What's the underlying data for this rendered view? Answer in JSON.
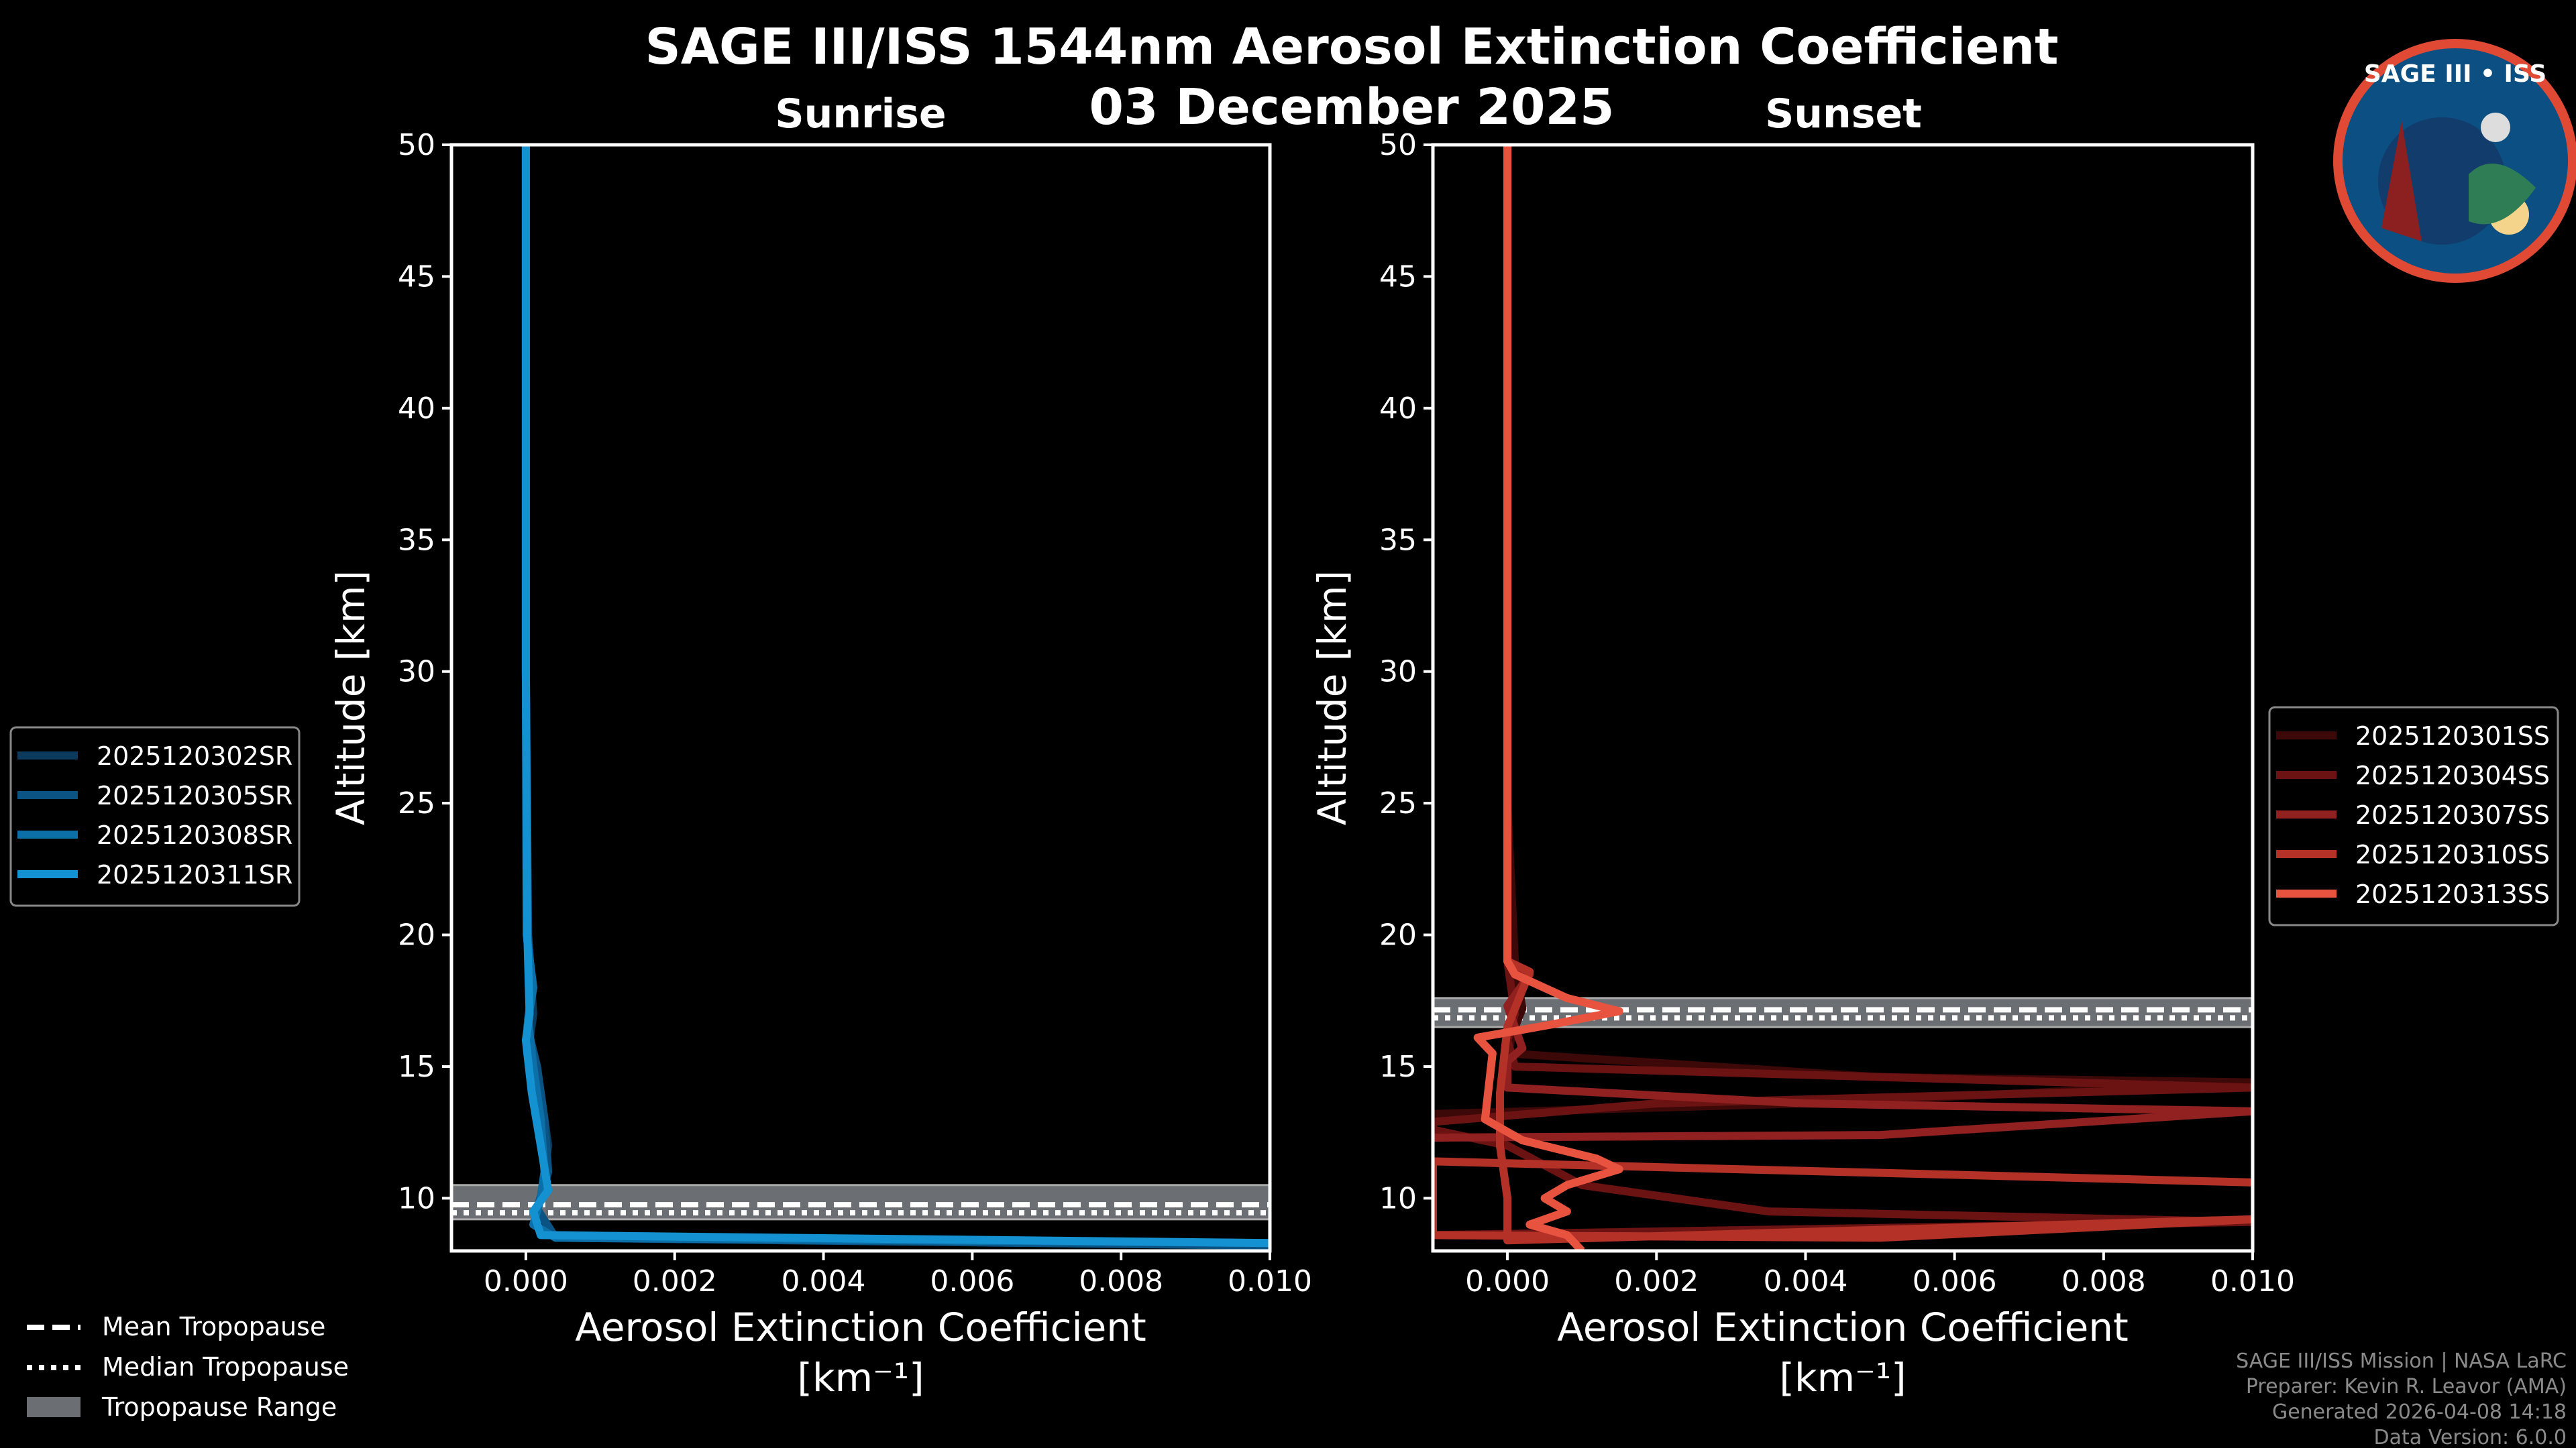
{
  "title_line1": "SAGE III/ISS 1544nm Aerosol Extinction Coefficient",
  "title_line2": "03 December 2025",
  "logo_text": "SAGE III • ISS",
  "credits": [
    "SAGE III/ISS Mission | NASA LaRC",
    "Preparer: Kevin R. Leavor (AMA)",
    "Generated 2026-04-08 14:18",
    "Data Version: 6.0.0"
  ],
  "tropo_legend": {
    "mean": "Mean Tropopause",
    "median": "Median Tropopause",
    "range": "Tropopause Range"
  },
  "colors": {
    "tropo_range": "#6b6e72"
  },
  "chart_data": [
    {
      "type": "line",
      "title": "Sunrise",
      "xlabel": "Aerosol Extinction Coefficient",
      "xunit": "[km⁻¹]",
      "ylabel": "Altitude [km]",
      "xlim": [
        -0.001,
        0.01
      ],
      "ylim": [
        8,
        50
      ],
      "xticks": [
        "0.000",
        "0.002",
        "0.004",
        "0.006",
        "0.008",
        "0.010"
      ],
      "xtick_values": [
        0,
        0.002,
        0.004,
        0.006,
        0.008,
        0.01
      ],
      "yticks": [
        10,
        15,
        20,
        25,
        30,
        35,
        40,
        45,
        50
      ],
      "legend_placement": "left",
      "tropopause": {
        "mean": 9.6,
        "median": 9.6,
        "range": [
          9.2,
          10.5
        ]
      },
      "series": [
        {
          "name": "2025120302SR",
          "color": "#0b3a5c",
          "points": [
            [
              0,
              50
            ],
            [
              0,
              30
            ],
            [
              2e-05,
              20
            ],
            [
              0.0001,
              17
            ],
            [
              5e-05,
              16
            ],
            [
              0.0002,
              14
            ],
            [
              0.0003,
              12
            ],
            [
              0.0002,
              10
            ],
            [
              0.0001,
              9
            ],
            [
              0.0004,
              8.6
            ],
            [
              0.01,
              8.2
            ]
          ]
        },
        {
          "name": "2025120305SR",
          "color": "#0a5383",
          "points": [
            [
              0,
              50
            ],
            [
              0,
              30
            ],
            [
              3e-05,
              20
            ],
            [
              8e-05,
              18
            ],
            [
              2e-05,
              16.5
            ],
            [
              0.00015,
              15
            ],
            [
              0.00025,
              13
            ],
            [
              0.0003,
              11
            ],
            [
              0.00015,
              9.6
            ],
            [
              0.0004,
              8.5
            ],
            [
              0.01,
              8.2
            ]
          ]
        },
        {
          "name": "2025120308SR",
          "color": "#0c6fa8",
          "points": [
            [
              0,
              50
            ],
            [
              0,
              30
            ],
            [
              1e-05,
              20
            ],
            [
              0.0001,
              18
            ],
            [
              3e-05,
              16.8
            ],
            [
              0.0001,
              15
            ],
            [
              0.0002,
              13
            ],
            [
              0.00025,
              11
            ],
            [
              0.0002,
              10
            ],
            [
              0.0001,
              9
            ],
            [
              0.0004,
              8.5
            ],
            [
              0.01,
              8.3
            ]
          ]
        },
        {
          "name": "2025120311SR",
          "color": "#1491d1",
          "points": [
            [
              0,
              50
            ],
            [
              0,
              30
            ],
            [
              2e-05,
              20
            ],
            [
              5e-05,
              17
            ],
            [
              0,
              16
            ],
            [
              8e-05,
              14
            ],
            [
              0.0002,
              12
            ],
            [
              0.0003,
              10.3
            ],
            [
              0.0001,
              9.5
            ],
            [
              0.0002,
              8.6
            ],
            [
              0.01,
              8.3
            ]
          ]
        }
      ]
    },
    {
      "type": "line",
      "title": "Sunset",
      "xlabel": "Aerosol Extinction Coefficient",
      "xunit": "[km⁻¹]",
      "ylabel": "Altitude [km]",
      "xlim": [
        -0.001,
        0.01
      ],
      "ylim": [
        8,
        50
      ],
      "xticks": [
        "0.000",
        "0.002",
        "0.004",
        "0.006",
        "0.008",
        "0.010"
      ],
      "xtick_values": [
        0,
        0.002,
        0.004,
        0.006,
        0.008,
        0.01
      ],
      "yticks": [
        10,
        15,
        20,
        25,
        30,
        35,
        40,
        45,
        50
      ],
      "legend_placement": "right",
      "tropopause": {
        "mean": 17.0,
        "median": 17.0,
        "range": [
          16.5,
          17.6
        ]
      },
      "series": [
        {
          "name": "2025120301SS",
          "color": "#3d0808",
          "points": [
            [
              0,
              50
            ],
            [
              0,
              25
            ],
            [
              0.0001,
              19
            ],
            [
              0.0002,
              17.2
            ],
            [
              0.0001,
              16.5
            ],
            [
              0,
              15.5
            ],
            [
              0.005,
              14.6
            ],
            [
              0.01,
              14.4
            ],
            [
              0.004,
              13.6
            ],
            [
              -0.001,
              13.2
            ]
          ]
        },
        {
          "name": "2025120304SS",
          "color": "#6b1212",
          "points": [
            [
              0,
              50
            ],
            [
              0,
              25
            ],
            [
              0,
              19
            ],
            [
              0.0001,
              17
            ],
            [
              0,
              16
            ],
            [
              0.0001,
              15
            ],
            [
              0.01,
              14.2
            ],
            [
              0.002,
              13.6
            ],
            [
              -0.001,
              12.9
            ],
            [
              -0.001,
              12.6
            ],
            [
              0,
              12
            ],
            [
              0.001,
              10.5
            ],
            [
              0.0035,
              9.5
            ],
            [
              0.01,
              9.1
            ],
            [
              -0.001,
              8.6
            ]
          ]
        },
        {
          "name": "2025120307SS",
          "color": "#912020",
          "points": [
            [
              0,
              50
            ],
            [
              0,
              25
            ],
            [
              0,
              19
            ],
            [
              0.0003,
              18.5
            ],
            [
              0,
              17.3
            ],
            [
              0.0001,
              16.5
            ],
            [
              0.0002,
              15.7
            ],
            [
              0,
              15.2
            ],
            [
              0,
              14.2
            ],
            [
              0.004,
              13.6
            ],
            [
              0.01,
              13.3
            ],
            [
              0.005,
              12.4
            ],
            [
              -0.001,
              12.3
            ]
          ]
        },
        {
          "name": "2025120310SS",
          "color": "#b33127",
          "points": [
            [
              0,
              50
            ],
            [
              0,
              25
            ],
            [
              0,
              19
            ],
            [
              0.0003,
              18.6
            ],
            [
              0,
              16.5
            ],
            [
              -0.0001,
              14
            ],
            [
              -0.0001,
              12
            ],
            [
              0,
              10
            ],
            [
              0,
              8.4
            ],
            [
              0.01,
              9.2
            ],
            [
              0.005,
              8.5
            ],
            [
              -0.001,
              8.6
            ],
            [
              -0.001,
              11.4
            ],
            [
              0.01,
              10.6
            ]
          ]
        },
        {
          "name": "2025120313SS",
          "color": "#e8533f",
          "points": [
            [
              0,
              50
            ],
            [
              0,
              25
            ],
            [
              0,
              19
            ],
            [
              0.0001,
              18.5
            ],
            [
              0.0008,
              17.6
            ],
            [
              0.0015,
              17.1
            ],
            [
              0.0006,
              16.6
            ],
            [
              -0.0004,
              16.1
            ],
            [
              -0.0002,
              15.5
            ],
            [
              -0.0003,
              13
            ],
            [
              0.0002,
              12.2
            ],
            [
              0.0012,
              11.5
            ],
            [
              0.0015,
              11.1
            ],
            [
              0.0008,
              10.5
            ],
            [
              0.0005,
              10
            ],
            [
              0.0008,
              9.5
            ],
            [
              0.0003,
              9.0
            ],
            [
              0.0008,
              8.6
            ],
            [
              0.001,
              8
            ]
          ]
        }
      ]
    }
  ]
}
